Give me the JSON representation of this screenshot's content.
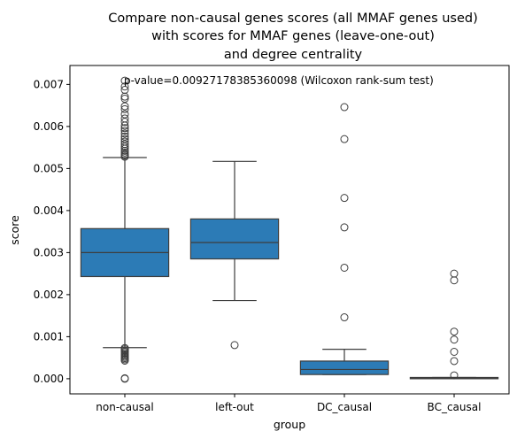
{
  "chart_data": {
    "type": "box",
    "title": [
      "Compare non-causal genes scores (all MMAF genes used)",
      "with scores for MMAF genes (leave-one-out)",
      "and degree centrality"
    ],
    "xlabel": "group",
    "ylabel": "score",
    "categories": [
      "non-causal",
      "left-out",
      "DC_causal",
      "BC_causal"
    ],
    "yticks": [
      0.0,
      0.001,
      0.002,
      0.003,
      0.004,
      0.005,
      0.006,
      0.007
    ],
    "ytick_labels": [
      "0.000",
      "0.001",
      "0.002",
      "0.003",
      "0.004",
      "0.005",
      "0.006",
      "0.007"
    ],
    "ylim": [
      -0.00036,
      0.00745
    ],
    "annotation": "p-value=0.00927178385360098 (Wilcoxon rank-sum test)",
    "box_color": "#2c7bb6",
    "boxes": [
      {
        "name": "non-causal",
        "whisker_low": 0.00074,
        "q1": 0.00243,
        "median": 0.003,
        "q3": 0.00357,
        "whisker_high": 0.00526,
        "fliers": [
          0.00709,
          0.00695,
          0.00687,
          0.00671,
          0.00666,
          0.00648,
          0.00641,
          0.00629,
          0.00619,
          0.00611,
          0.00602,
          0.00596,
          0.0059,
          0.00583,
          0.00576,
          0.0057,
          0.00564,
          0.00558,
          0.00552,
          0.00547,
          0.00542,
          0.00538,
          0.00534,
          0.00531,
          0.00528,
          0.00073,
          0.0007,
          0.00067,
          0.00064,
          0.00061,
          0.00058,
          0.00055,
          0.00052,
          0.00049,
          0.00046,
          0.00043,
          1e-05,
          0.0
        ]
      },
      {
        "name": "left-out",
        "whisker_low": 0.00186,
        "q1": 0.00285,
        "median": 0.00324,
        "q3": 0.0038,
        "whisker_high": 0.00517,
        "fliers": [
          0.0008
        ]
      },
      {
        "name": "DC_causal",
        "whisker_low": 0.0001,
        "q1": 0.0001,
        "median": 0.00022,
        "q3": 0.00042,
        "whisker_high": 0.0007,
        "fliers": [
          0.00646,
          0.0057,
          0.0043,
          0.0036,
          0.00264,
          0.00146
        ]
      },
      {
        "name": "BC_causal",
        "whisker_low": 0.0,
        "q1": 0.0,
        "median": 1e-05,
        "q3": 3e-05,
        "whisker_high": 3e-05,
        "fliers": [
          0.0025,
          0.00234,
          0.00112,
          0.00093,
          0.00064,
          0.00042,
          8e-05
        ]
      }
    ]
  }
}
